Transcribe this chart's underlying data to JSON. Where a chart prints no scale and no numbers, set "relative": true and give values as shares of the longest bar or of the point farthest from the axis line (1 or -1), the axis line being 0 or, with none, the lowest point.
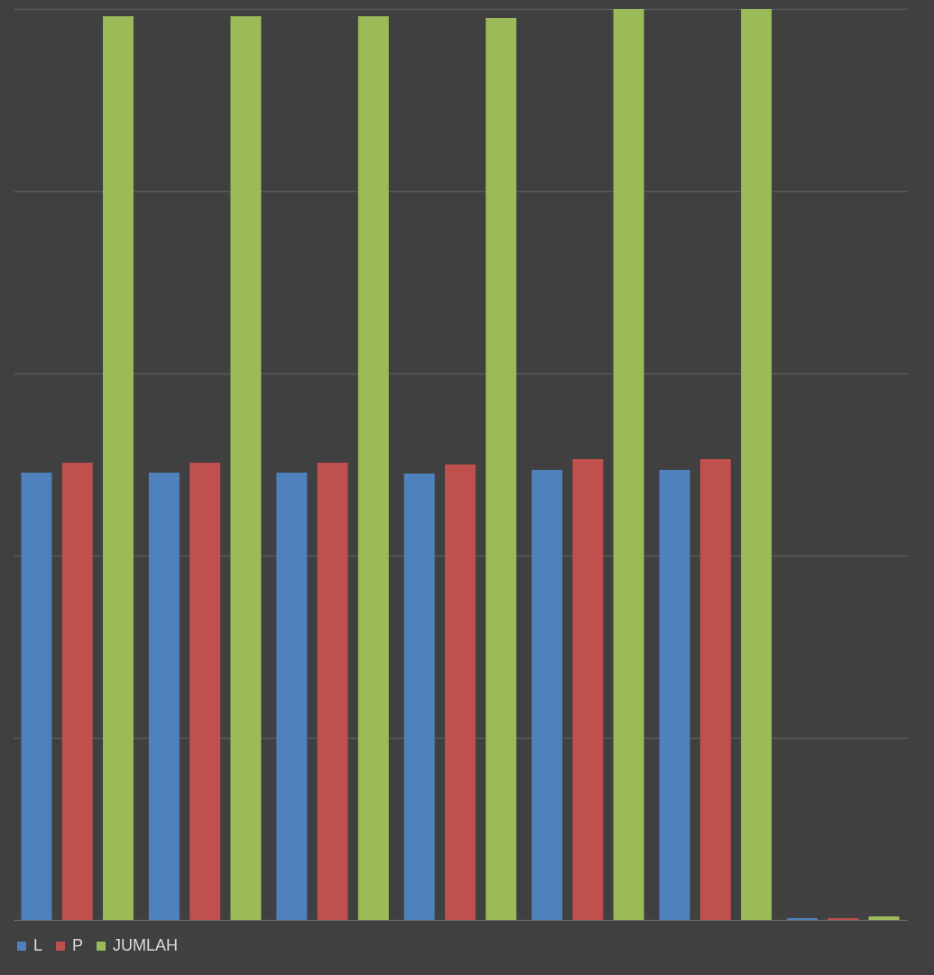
{
  "chart_data": {
    "type": "bar",
    "relative": true,
    "categories": [
      null,
      null,
      null,
      null,
      null,
      null,
      null
    ],
    "series": [
      {
        "name": "L",
        "color": "#4f81bd",
        "values": [
          0.491,
          0.491,
          0.491,
          0.49,
          0.494,
          0.494,
          0.002
        ]
      },
      {
        "name": "P",
        "color": "#c0504d",
        "values": [
          0.502,
          0.502,
          0.502,
          0.5,
          0.506,
          0.506,
          0.002
        ]
      },
      {
        "name": "JUMLAH",
        "color": "#9bbb59",
        "values": [
          0.992,
          0.992,
          0.992,
          0.99,
          1,
          1,
          0.004
        ]
      }
    ],
    "grid": "y",
    "legend": "bottom"
  }
}
